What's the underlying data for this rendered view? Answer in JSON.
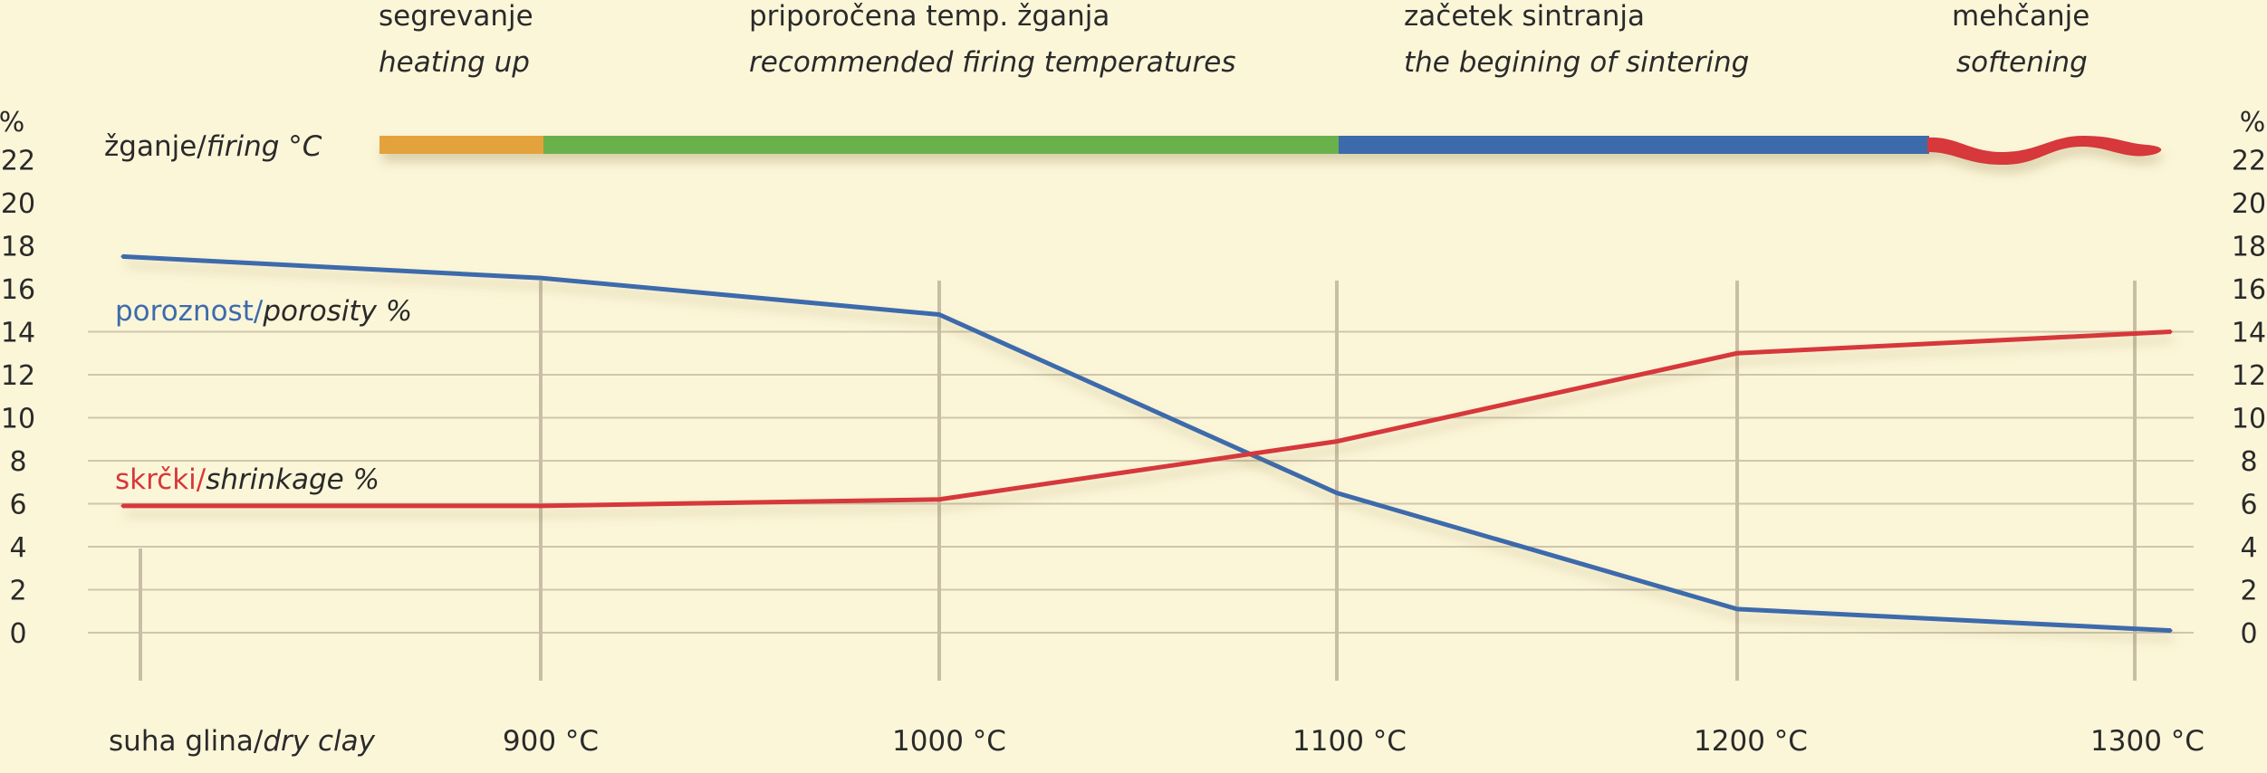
{
  "chart_data": {
    "type": "line",
    "stages": [
      {
        "label": "segrevanje",
        "label_en": "heating up",
        "color": "#e4a23c"
      },
      {
        "label": "priporočena temp. žganja",
        "label_en": "recommended firing temperatures",
        "color": "#6ab14c"
      },
      {
        "label": "začetek sintranja",
        "label_en": "the begining of sintering",
        "color": "#3e6bab"
      },
      {
        "label": "mehčanje",
        "label_en": "softening",
        "color": "#d6383a"
      }
    ],
    "firing_label": {
      "sl": "žganje/",
      "en": "firing °C"
    },
    "x_labels": [
      {
        "sl": "suha glina/",
        "en": "dry clay"
      },
      {
        "sl": "900 °C",
        "en": ""
      },
      {
        "sl": "1000 °C",
        "en": ""
      },
      {
        "sl": "1100 °C",
        "en": ""
      },
      {
        "sl": "1200 °C",
        "en": ""
      },
      {
        "sl": "1300 °C",
        "en": ""
      }
    ],
    "y_unit": "%",
    "y_ticks": [
      0,
      2,
      4,
      6,
      8,
      10,
      12,
      14,
      16,
      18,
      20,
      22
    ],
    "ylim": [
      0,
      22
    ],
    "grid": true,
    "series": [
      {
        "name_sl": "poroznost/",
        "name_en": "porosity %",
        "color": "#3e6bab",
        "points": [
          {
            "x": "suha glina",
            "y": 17.5
          },
          {
            "x": "900 °C",
            "y": 16.5
          },
          {
            "x": "1000 °C",
            "y": 14.8
          },
          {
            "x": "1100 °C",
            "y": 6.5
          },
          {
            "x": "1200 °C",
            "y": 1.1
          },
          {
            "x": "1300 °C",
            "y": 0.1
          }
        ]
      },
      {
        "name_sl": "skrčki/",
        "name_en": "shrinkage %",
        "color": "#d6383a",
        "points": [
          {
            "x": "suha glina",
            "y": 5.9
          },
          {
            "x": "900 °C",
            "y": 5.9
          },
          {
            "x": "1000 °C",
            "y": 6.2
          },
          {
            "x": "1100 °C",
            "y": 8.9
          },
          {
            "x": "1200 °C",
            "y": 13.0
          },
          {
            "x": "1300 °C",
            "y": 14.0
          }
        ]
      }
    ]
  }
}
